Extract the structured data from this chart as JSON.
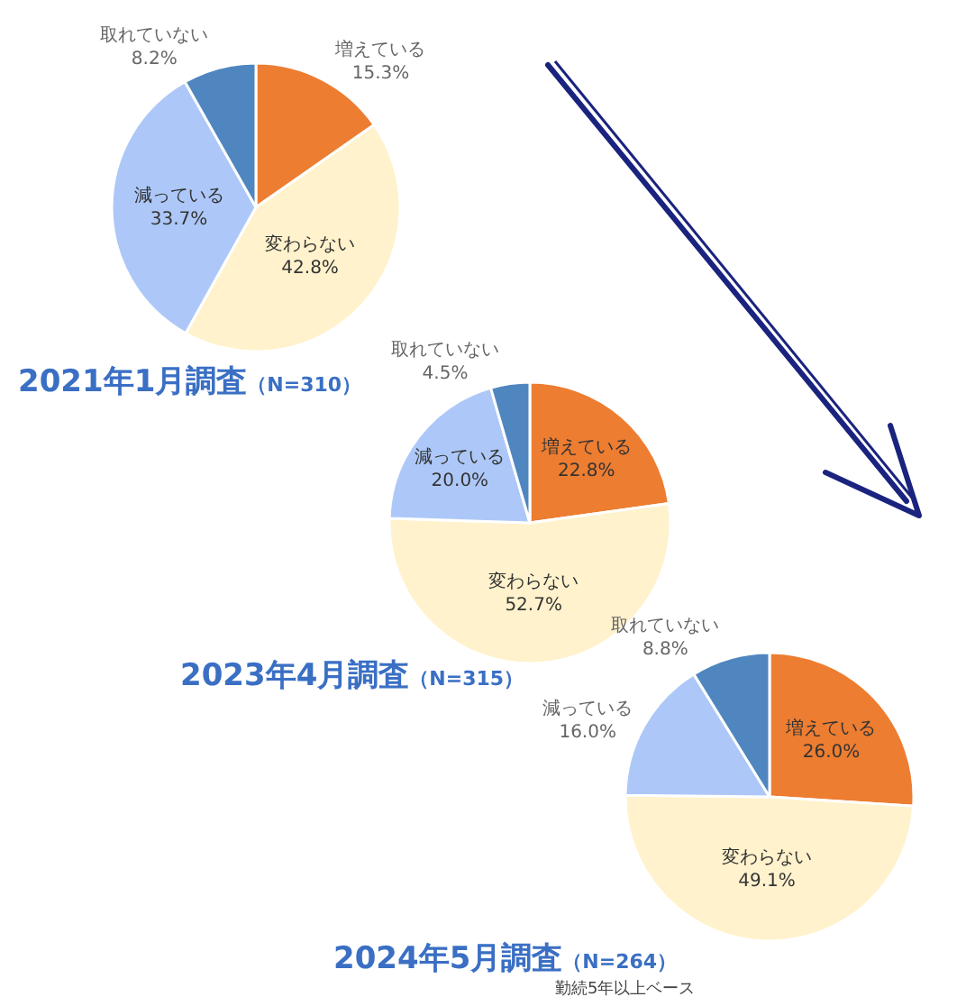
{
  "chart_data": [
    {
      "type": "pie",
      "title": "2021年1月調査",
      "subtitle": "（N=310）",
      "categories": [
        "増えている",
        "変わらない",
        "減っている",
        "取れていない"
      ],
      "values": [
        15.3,
        42.8,
        33.7,
        8.2
      ],
      "value_labels": [
        "15.3%",
        "42.8%",
        "33.7%",
        "8.2%"
      ],
      "colors": [
        "#ed7d31",
        "#fff2cc",
        "#adc8f8",
        "#4f86c0"
      ]
    },
    {
      "type": "pie",
      "title": "2023年4月調査",
      "subtitle": "（N=315）",
      "categories": [
        "増えている",
        "変わらない",
        "減っている",
        "取れていない"
      ],
      "values": [
        22.8,
        52.7,
        20.0,
        4.5
      ],
      "value_labels": [
        "22.8%",
        "52.7%",
        "20.0%",
        "4.5%"
      ],
      "colors": [
        "#ed7d31",
        "#fff2cc",
        "#adc8f8",
        "#4f86c0"
      ]
    },
    {
      "type": "pie",
      "title": "2024年5月調査",
      "subtitle": "（N=264）",
      "categories": [
        "増えている",
        "変わらない",
        "減っている",
        "取れていない"
      ],
      "values": [
        26.0,
        49.1,
        16.0,
        8.8
      ],
      "value_labels": [
        "26.0%",
        "49.1%",
        "16.0%",
        "8.8%"
      ],
      "colors": [
        "#ed7d31",
        "#fff2cc",
        "#adc8f8",
        "#4f86c0"
      ],
      "annotations": [
        "勤続5年以上ベース"
      ]
    }
  ]
}
